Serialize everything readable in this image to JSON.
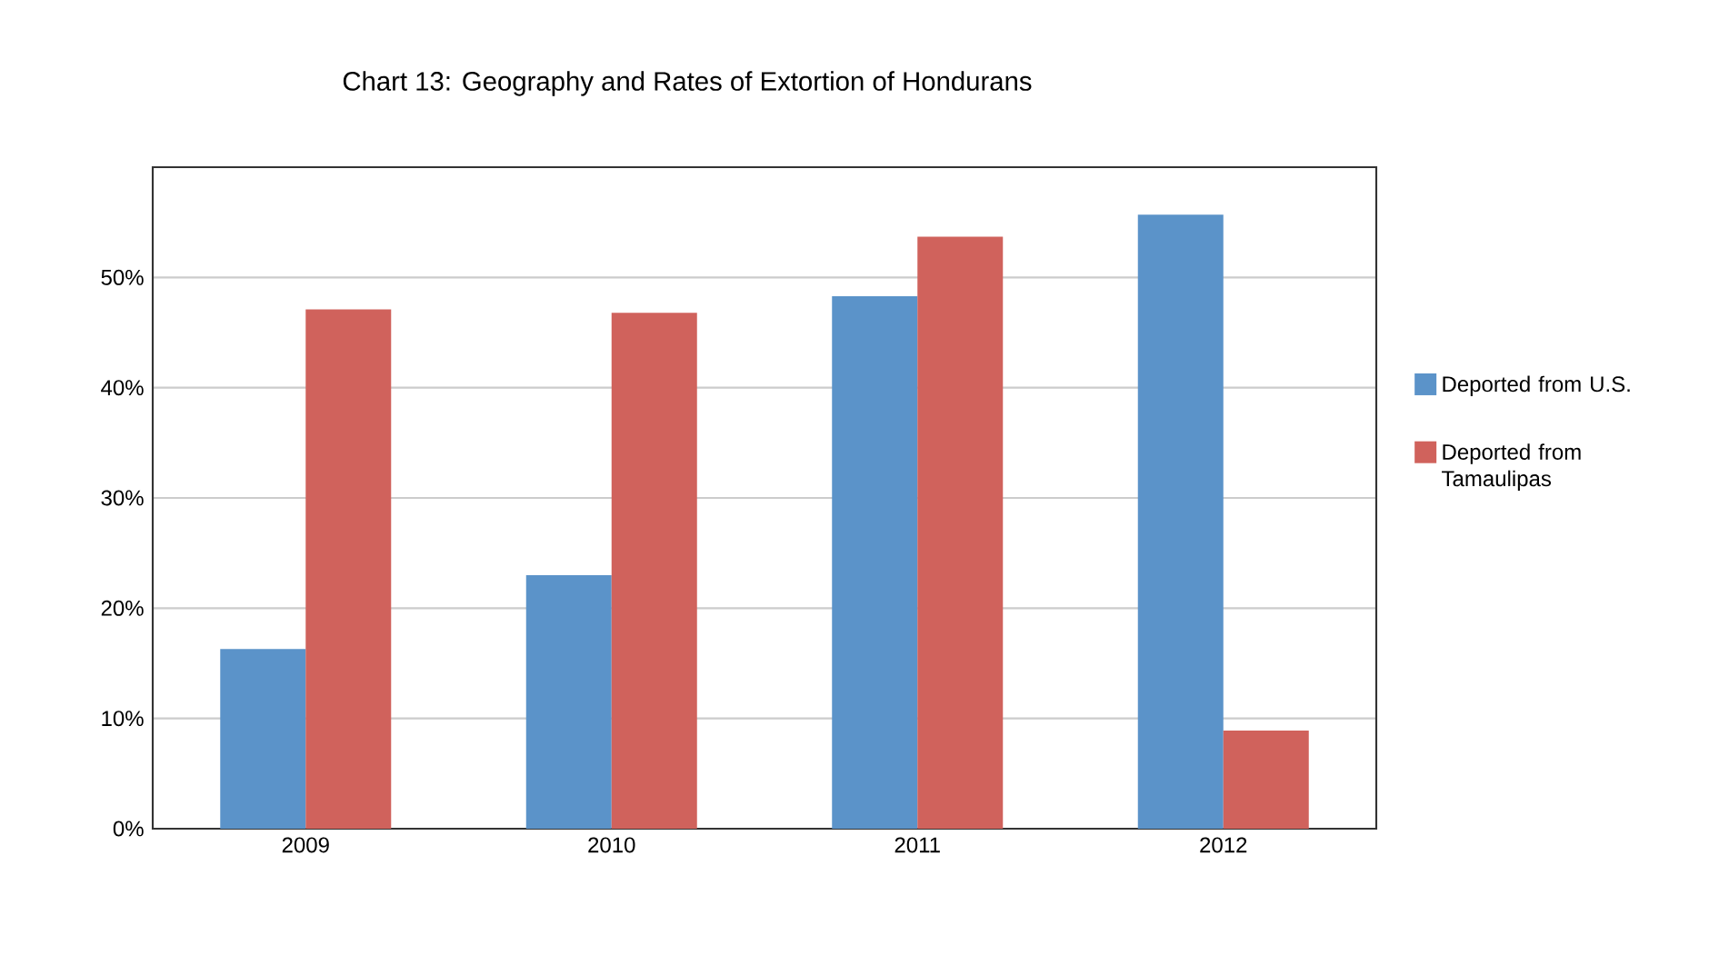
{
  "chart_data": {
    "type": "bar",
    "title": "Chart 13: Geography and Rates of Extortion of Hondurans",
    "categories": [
      "2009",
      "2010",
      "2011",
      "2012"
    ],
    "series": [
      {
        "name": "Deported from U.S.",
        "color": "#5b93c9",
        "values": [
          16.3,
          23.0,
          48.3,
          55.7
        ]
      },
      {
        "name": "Deported from Tamaulipas",
        "color": "#d0625c",
        "values": [
          47.1,
          46.8,
          53.7,
          8.9
        ]
      }
    ],
    "ylim": [
      0,
      60
    ],
    "yticks": [
      {
        "value": 0,
        "label": "0%"
      },
      {
        "value": 10,
        "label": "10%"
      },
      {
        "value": 20,
        "label": "20%"
      },
      {
        "value": 30,
        "label": "30%"
      },
      {
        "value": 40,
        "label": "40%"
      },
      {
        "value": 50,
        "label": "50%"
      }
    ],
    "grid": "y",
    "legend": "right"
  }
}
